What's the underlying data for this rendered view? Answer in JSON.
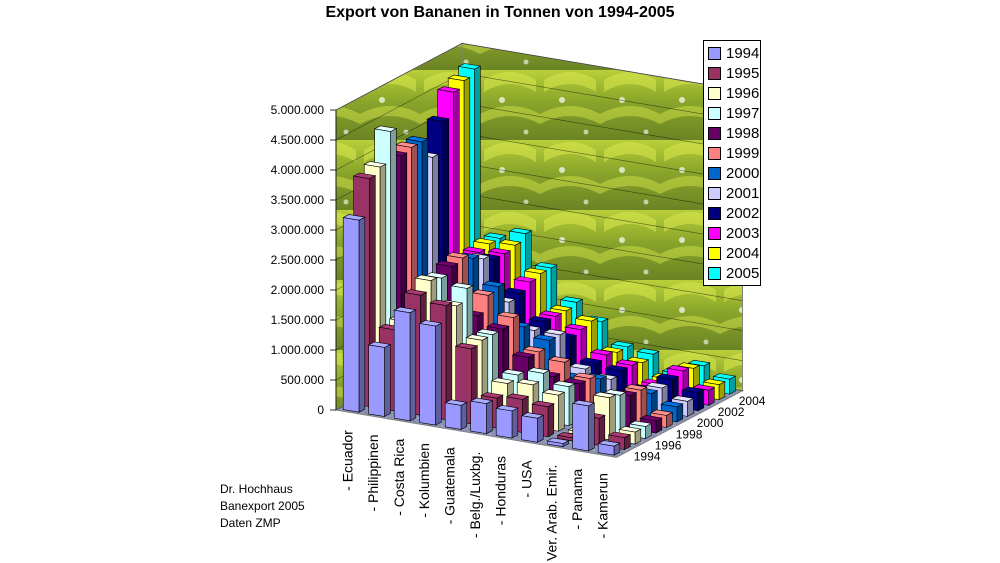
{
  "title": "Export von Bananen in Tonnen von 1994-2005",
  "credits": [
    "Dr. Hochhaus",
    "Banexport 2005",
    "Daten ZMP"
  ],
  "chart_data": {
    "type": "bar",
    "subtype": "3d-column",
    "title": "Export von Bananen in Tonnen von 1994-2005",
    "categories": [
      "- Ecuador",
      "- Philippinen",
      "- Costa Rica",
      "- Kolumbien",
      "- Guatemala",
      "- Belg./Luxbg.",
      "- Honduras",
      "- USA",
      "- Ver. Arab. Emir.",
      "- Panama",
      "- Kamerun"
    ],
    "ylim": [
      0,
      5000000
    ],
    "y_ticks": [
      "0",
      "500.000",
      "1.000.000",
      "1.500.000",
      "2.000.000",
      "2.500.000",
      "3.000.000",
      "3.500.000",
      "4.000.000",
      "4.500.000",
      "5.000.000"
    ],
    "depth_ticks": [
      "1994",
      "1996",
      "1998",
      "2000",
      "2002",
      "2004"
    ],
    "grid": true,
    "legend_position": "right",
    "series": [
      {
        "name": "1994",
        "color": "#9999ff",
        "values": [
          3200000,
          1150000,
          1800000,
          1650000,
          400000,
          500000,
          450000,
          400000,
          50000,
          750000,
          150000
        ]
      },
      {
        "name": "1995",
        "color": "#993366",
        "values": [
          3800000,
          1350000,
          2000000,
          1900000,
          1250000,
          500000,
          550000,
          500000,
          50000,
          450000,
          200000
        ]
      },
      {
        "name": "1996",
        "color": "#ffffcc",
        "values": [
          3900000,
          1400000,
          2150000,
          1800000,
          1300000,
          650000,
          700000,
          600000,
          50000,
          700000,
          200000
        ]
      },
      {
        "name": "1997",
        "color": "#ccffff",
        "values": [
          4400000,
          1300000,
          2100000,
          2000000,
          1300000,
          700000,
          800000,
          650000,
          100000,
          650000,
          200000
        ]
      },
      {
        "name": "1998",
        "color": "#660066",
        "values": [
          3900000,
          1500000,
          2200000,
          1450000,
          1300000,
          900000,
          650000,
          600000,
          150000,
          550000,
          200000
        ]
      },
      {
        "name": "1999",
        "color": "#ff8080",
        "values": [
          3950000,
          1600000,
          2250000,
          1700000,
          1400000,
          900000,
          800000,
          600000,
          150000,
          550000,
          200000
        ]
      },
      {
        "name": "2000",
        "color": "#0066cc",
        "values": [
          3950000,
          1550000,
          2150000,
          1750000,
          1150000,
          1000000,
          450000,
          500000,
          150000,
          400000,
          250000
        ]
      },
      {
        "name": "2001",
        "color": "#ccccff",
        "values": [
          3600000,
          1600000,
          2050000,
          1400000,
          1000000,
          1000000,
          500000,
          400000,
          200000,
          400000,
          250000
        ]
      },
      {
        "name": "2002",
        "color": "#000080",
        "values": [
          4100000,
          1750000,
          1950000,
          1450000,
          1050000,
          850000,
          500000,
          450000,
          200000,
          450000,
          300000
        ]
      },
      {
        "name": "2003",
        "color": "#ff00ff",
        "values": [
          4500000,
          1900000,
          1950000,
          1550000,
          1050000,
          900000,
          550000,
          450000,
          200000,
          500000,
          250000
        ]
      },
      {
        "name": "2004",
        "color": "#ffff00",
        "values": [
          4600000,
          1950000,
          2000000,
          1600000,
          1050000,
          950000,
          500000,
          400000,
          200000,
          450000,
          250000
        ]
      },
      {
        "name": "2005",
        "color": "#00ffff",
        "values": [
          4700000,
          1950000,
          2100000,
          1600000,
          1100000,
          850000,
          500000,
          450000,
          200000,
          400000,
          250000
        ]
      }
    ]
  }
}
